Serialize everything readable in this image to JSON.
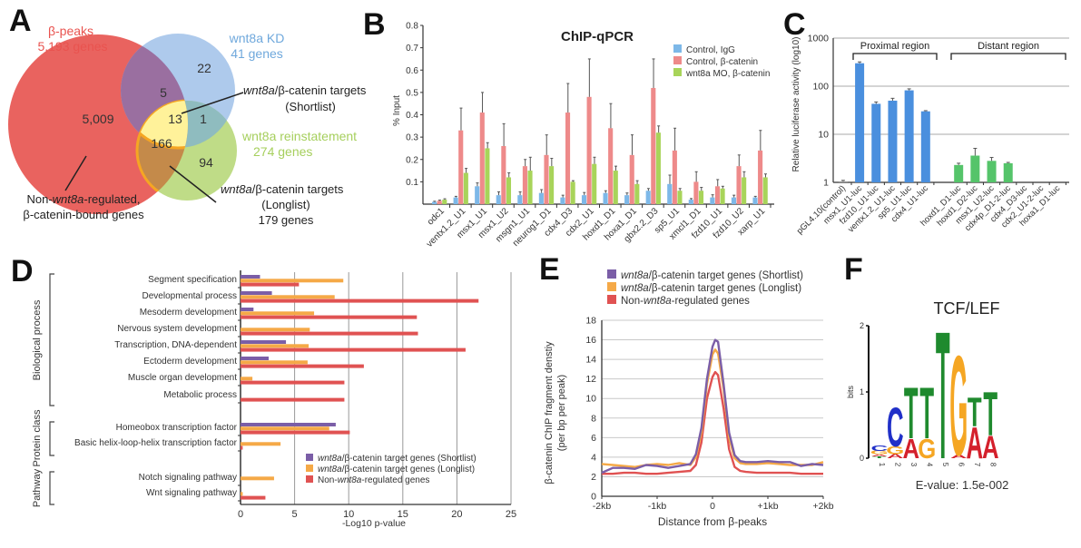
{
  "panels": {
    "A": "A",
    "B": "B",
    "C": "C",
    "D": "D",
    "E": "E",
    "F": "F"
  },
  "chart_data": [
    {
      "id": "A",
      "type": "venn",
      "sets": [
        {
          "name": "β-peaks",
          "subtitle": "5,193 genes",
          "color": "#e9534f"
        },
        {
          "name": "wnt8a KD",
          "subtitle": "41 genes",
          "color": "#6fa8dc"
        },
        {
          "name": "wnt8a reinstatement",
          "subtitle": "274 genes",
          "color": "#a6cf5d"
        }
      ],
      "regions": [
        {
          "sets": [
            "β-peaks"
          ],
          "value": "5,009"
        },
        {
          "sets": [
            "wnt8a KD"
          ],
          "value": "22"
        },
        {
          "sets": [
            "β-peaks",
            "wnt8a KD"
          ],
          "value": "5"
        },
        {
          "sets": [
            "β-peaks",
            "wnt8a KD",
            "wnt8a reinstatement"
          ],
          "value": "13"
        },
        {
          "sets": [
            "wnt8a KD",
            "wnt8a reinstatement"
          ],
          "value": "1"
        },
        {
          "sets": [
            "β-peaks",
            "wnt8a reinstatement"
          ],
          "value": "166"
        },
        {
          "sets": [
            "wnt8a reinstatement"
          ],
          "value": "94"
        }
      ],
      "annotations": {
        "shortlist_1": "wnt8a",
        "shortlist_2": "/β-catenin targets",
        "shortlist_3": "(Shortlist)",
        "longlist_1": "wnt8a",
        "longlist_2": "/β-catenin targets",
        "longlist_3": "(Longlist)",
        "longlist_4": "179 genes",
        "nonreg_1a": "Non-",
        "nonreg_1b": "wnt8a",
        "nonreg_1c": "-regulated,",
        "nonreg_2": "β-catenin-bound genes"
      }
    },
    {
      "id": "B",
      "type": "bar",
      "title": "ChIP-qPCR",
      "ylabel": "% Input",
      "ylim": [
        0,
        0.8
      ],
      "yticks": [
        "0.1",
        "0.2",
        "0.3",
        "0.4",
        "0.5",
        "0.6",
        "0.7",
        "0.8"
      ],
      "categories": [
        "odc1",
        "ventx1.2_U1",
        "msx1_U1",
        "msx1_U2",
        "msgn1_U1",
        "neurog1_D1",
        "cdx4_D3",
        "cdx2_U1",
        "hoxd1_D1",
        "hoxa1_D1",
        "gbx2.2_D3",
        "sp5_U1",
        "xmcl1_D1",
        "fzd10_U1",
        "fzd10_U2",
        "xarp_U1"
      ],
      "series": [
        {
          "name": "Control, IgG",
          "color": "#7db8e8",
          "values": [
            0.01,
            0.03,
            0.08,
            0.04,
            0.04,
            0.05,
            0.03,
            0.04,
            0.05,
            0.04,
            0.06,
            0.09,
            0.02,
            0.03,
            0.03,
            0.03
          ],
          "errors": [
            0.003,
            0.005,
            0.015,
            0.015,
            0.015,
            0.015,
            0.01,
            0.012,
            0.01,
            0.01,
            0.01,
            0.04,
            0.005,
            0.012,
            0.01,
            0.005
          ]
        },
        {
          "name": "Control, β-catenin",
          "color": "#ee8a8a",
          "values": [
            0.015,
            0.33,
            0.41,
            0.26,
            0.17,
            0.22,
            0.41,
            0.48,
            0.34,
            0.22,
            0.52,
            0.24,
            0.1,
            0.08,
            0.17,
            0.24
          ],
          "errors": [
            0.003,
            0.1,
            0.09,
            0.1,
            0.03,
            0.09,
            0.13,
            0.17,
            0.11,
            0.09,
            0.13,
            0.1,
            0.045,
            0.03,
            0.05,
            0.09
          ]
        },
        {
          "name": "wnt8a MO, β-catenin",
          "color": "#a8d45a",
          "values": [
            0.02,
            0.14,
            0.25,
            0.12,
            0.15,
            0.17,
            0.1,
            0.18,
            0.15,
            0.09,
            0.32,
            0.06,
            0.06,
            0.07,
            0.12,
            0.12
          ],
          "errors": [
            0.004,
            0.02,
            0.025,
            0.02,
            0.06,
            0.035,
            0.005,
            0.03,
            0.02,
            0.015,
            0.03,
            0.01,
            0.015,
            0.01,
            0.025,
            0.015
          ]
        }
      ]
    },
    {
      "id": "C",
      "type": "bar",
      "ylabel": "Relative luciferase activity (log10)",
      "yscale": "log",
      "ylim": [
        1,
        1000
      ],
      "yticks": [
        "1",
        "10",
        "100",
        "1000"
      ],
      "groups": [
        {
          "label": "Proximal region"
        },
        {
          "label": "Distant region"
        }
      ],
      "categories": [
        "pGL4.10(control)",
        "msx1_U1-luc",
        "fzd10_U1-luc",
        "ventx1.2_U1-luc",
        "sp5_U1-luc",
        "cdx4_U1-luc",
        "hoxd1_D1-luc",
        "hoxd1_D2-luc",
        "msx1_U2-luc",
        "cdx4p_D1-2-luc",
        "cdx4_D3-luc",
        "cdx2_U1-2-luc",
        "hoxa1_D1-luc"
      ],
      "values": [
        1.05,
        300,
        43,
        50,
        82,
        30,
        2.3,
        3.6,
        2.8,
        2.5,
        1,
        1,
        1
      ],
      "errors": [
        0.05,
        20,
        4,
        6,
        6,
        1,
        0.2,
        1.5,
        0.5,
        0.1,
        0,
        0,
        0
      ],
      "colors": {
        "proximal": "#4a8fde",
        "distant": "#55c46a",
        "control": "#999999"
      }
    },
    {
      "id": "D",
      "type": "bar",
      "orientation": "horizontal",
      "xlabel": "-Log10 p-value",
      "xlim": [
        0,
        25
      ],
      "xticks": [
        "0",
        "5",
        "10",
        "15",
        "20",
        "25"
      ],
      "section_labels": [
        "Biological process",
        "Protein class",
        "Pathway"
      ],
      "categories": [
        "Segment specification",
        "Developmental process",
        "Mesoderm development",
        "Nervous system development",
        "Transcription, DNA-dependent",
        "Ectoderm development",
        "Muscle organ development",
        "Metabolic process",
        "Homeobox transcription factor",
        "Basic helix-loop-helix transcription factor",
        "Notch signaling pathway",
        "Wnt signaling pathway"
      ],
      "sections": [
        0,
        0,
        0,
        0,
        0,
        0,
        0,
        0,
        1,
        1,
        2,
        2
      ],
      "series": [
        {
          "name_it": "wnt8a",
          "name_rest": "/β-catenin target genes (Shortlist)",
          "color": "#7b5ea7",
          "values": [
            1.8,
            2.9,
            1.2,
            0,
            4.2,
            2.6,
            0,
            0,
            8.8,
            0,
            0,
            0
          ]
        },
        {
          "name_it": "wnt8a",
          "name_rest": "/β-catenin target genes (Longlist)",
          "color": "#f5a947",
          "values": [
            9.5,
            8.7,
            6.8,
            6.4,
            6.3,
            6.2,
            1.1,
            0,
            8.2,
            3.7,
            3.1,
            0.2
          ]
        },
        {
          "name_pre": "Non-",
          "name_it": "wnt8a",
          "name_rest": "-regulated genes",
          "color": "#e05252",
          "values": [
            5.4,
            22.0,
            16.3,
            16.4,
            20.8,
            11.4,
            9.6,
            9.6,
            10.1,
            0.2,
            0,
            2.3
          ]
        }
      ]
    },
    {
      "id": "E",
      "type": "line",
      "xlabel": "Distance from β-peaks",
      "ylabel_1": "β-catenin ChIP fragment denstiy",
      "ylabel_2": "(per bp per peak)",
      "ylim": [
        0,
        18
      ],
      "xlim": [
        -2,
        2
      ],
      "yticks": [
        "0",
        "2",
        "4",
        "6",
        "8",
        "10",
        "12",
        "14",
        "16",
        "18"
      ],
      "xticks": [
        "-2kb",
        "-1kb",
        "0",
        "+1kb",
        "+2kb"
      ],
      "x": [
        -2.0,
        -1.8,
        -1.6,
        -1.4,
        -1.2,
        -1.0,
        -0.8,
        -0.6,
        -0.4,
        -0.3,
        -0.2,
        -0.1,
        0.0,
        0.05,
        0.1,
        0.2,
        0.3,
        0.4,
        0.5,
        0.6,
        0.8,
        1.0,
        1.2,
        1.4,
        1.6,
        1.8,
        2.0
      ],
      "series": [
        {
          "name_it": "wnt8a",
          "name_rest": "/β-catenin target genes (Shortlist)",
          "color": "#7b5ea7",
          "values": [
            2.4,
            2.9,
            2.9,
            2.8,
            3.2,
            3.1,
            2.9,
            3.1,
            3.3,
            4.3,
            7.0,
            12.0,
            15.3,
            16.0,
            15.8,
            11.5,
            6.5,
            4.2,
            3.6,
            3.5,
            3.5,
            3.6,
            3.5,
            3.5,
            3.1,
            3.3,
            3.2
          ]
        },
        {
          "name_it": "wnt8a",
          "name_rest": "/β-catenin target genes (Longlist)",
          "color": "#f5a947",
          "values": [
            3.3,
            3.2,
            3.1,
            3.0,
            3.2,
            3.3,
            3.2,
            3.4,
            3.2,
            4.0,
            6.5,
            11.5,
            14.5,
            15.0,
            14.6,
            11.0,
            6.0,
            3.9,
            3.4,
            3.3,
            3.3,
            3.4,
            3.3,
            3.2,
            3.2,
            3.2,
            3.5
          ]
        },
        {
          "name_pre": "Non-",
          "name_it": "wnt8a",
          "name_rest": "-regulated genes",
          "color": "#e05252",
          "values": [
            2.3,
            2.3,
            2.4,
            2.4,
            2.3,
            2.3,
            2.4,
            2.5,
            2.6,
            3.2,
            5.5,
            10.0,
            12.2,
            12.7,
            12.4,
            9.0,
            4.8,
            3.0,
            2.6,
            2.5,
            2.4,
            2.4,
            2.4,
            2.4,
            2.3,
            2.3,
            2.3
          ]
        }
      ]
    },
    {
      "id": "F",
      "type": "sequence-logo",
      "title": "TCF/LEF",
      "ylabel": "bits",
      "ylim": [
        0,
        2
      ],
      "yticks": [
        "0",
        "1",
        "2"
      ],
      "positions": [
        "1",
        "2",
        "3",
        "4",
        "5",
        "6",
        "7",
        "8"
      ],
      "evalue": "E-value: 1.5e-002",
      "letter_colors": {
        "A": "#d4202c",
        "C": "#2030c8",
        "G": "#f5a623",
        "T": "#1f8a2e"
      },
      "columns": [
        [
          {
            "l": "T",
            "h": 0.03
          },
          {
            "l": "A",
            "h": 0.03
          },
          {
            "l": "G",
            "h": 0.05
          },
          {
            "l": "C",
            "h": 0.08
          }
        ],
        [
          {
            "l": "A",
            "h": 0.06
          },
          {
            "l": "G",
            "h": 0.12
          },
          {
            "l": "C",
            "h": 0.6
          }
        ],
        [
          {
            "l": "A",
            "h": 0.3
          },
          {
            "l": "T",
            "h": 0.8
          }
        ],
        [
          {
            "l": "G",
            "h": 0.3
          },
          {
            "l": "T",
            "h": 0.8
          }
        ],
        [
          {
            "l": "T",
            "h": 1.98
          }
        ],
        [
          {
            "l": "A",
            "h": 0.05
          },
          {
            "l": "G",
            "h": 1.55
          }
        ],
        [
          {
            "l": "A",
            "h": 0.48
          },
          {
            "l": "T",
            "h": 0.45
          }
        ],
        [
          {
            "l": "A",
            "h": 0.35
          },
          {
            "l": "T",
            "h": 0.68
          }
        ]
      ]
    }
  ]
}
